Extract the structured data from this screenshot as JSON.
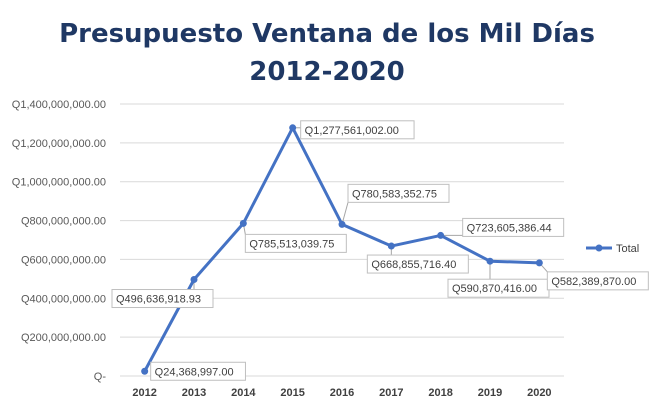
{
  "chart_data": {
    "type": "line",
    "title_line1": "Presupuesto Ventana de los Mil Días",
    "title_line2": "2012-2020",
    "categories": [
      "2012",
      "2013",
      "2014",
      "2015",
      "2016",
      "2017",
      "2018",
      "2019",
      "2020"
    ],
    "series": [
      {
        "name": "Total",
        "values": [
          24368997.0,
          496636918.93,
          785513039.75,
          1277561002.0,
          780583352.75,
          668855716.4,
          723605386.44,
          590870416.0,
          582389870.0
        ],
        "color": "#4472c4"
      }
    ],
    "data_labels": [
      "Q24,368,997.00",
      "Q496,636,918.93",
      "Q785,513,039.75",
      "Q1,277,561,002.00",
      "Q780,583,352.75",
      "Q668,855,716.40",
      "Q723,605,386.44",
      "Q590,870,416.00",
      "Q582,389,870.00"
    ],
    "y_ticks": [
      0,
      200000000,
      400000000,
      600000000,
      800000000,
      1000000000,
      1200000000,
      1400000000
    ],
    "y_tick_labels": [
      "Q-",
      "Q200,000,000.00",
      "Q400,000,000.00",
      "Q600,000,000.00",
      "Q800,000,000.00",
      "Q1,000,000,000.00",
      "Q1,200,000,000.00",
      "Q1,400,000,000.00"
    ],
    "ylim": [
      0,
      1400000000
    ],
    "grid": true,
    "legend_position": "right",
    "xlabel": "",
    "ylabel": ""
  }
}
